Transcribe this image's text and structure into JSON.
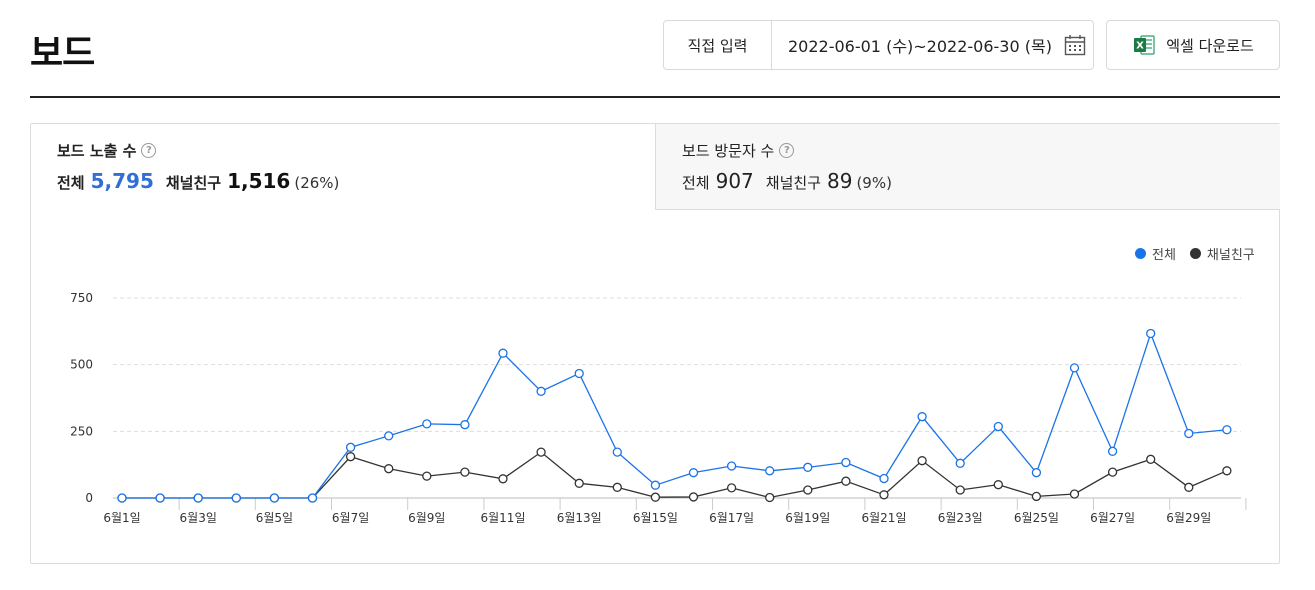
{
  "header": {
    "title": "보드",
    "date_mode": "직접 입력",
    "date_range": "2022-06-01 (수)~2022-06-30 (목)",
    "excel_label": "엑셀 다운로드"
  },
  "stats": {
    "exposure": {
      "title": "보드 노출 수",
      "total_label": "전체",
      "total_value": "5,795",
      "friend_label": "채널친구",
      "friend_value": "1,516",
      "friend_pct": "(26%)"
    },
    "visitors": {
      "title": "보드 방문자 수",
      "total_label": "전체",
      "total_value": "907",
      "friend_label": "채널친구",
      "friend_value": "89",
      "friend_pct": "(9%)"
    }
  },
  "colors": {
    "total": "#1a73e8",
    "friend": "#333333",
    "accent_value": "#2f6fd6"
  },
  "chart_data": {
    "type": "line",
    "legend": [
      "전체",
      "채널친구"
    ],
    "legend_position": "top-right",
    "grid": true,
    "ylim": [
      0,
      750
    ],
    "yticks": [
      0,
      250,
      500,
      750
    ],
    "x": [
      "6월1일",
      "6월2일",
      "6월3일",
      "6월4일",
      "6월5일",
      "6월6일",
      "6월7일",
      "6월8일",
      "6월9일",
      "6월10일",
      "6월11일",
      "6월12일",
      "6월13일",
      "6월14일",
      "6월15일",
      "6월16일",
      "6월17일",
      "6월18일",
      "6월19일",
      "6월20일",
      "6월21일",
      "6월22일",
      "6월23일",
      "6월24일",
      "6월25일",
      "6월26일",
      "6월27일",
      "6월28일",
      "6월29일",
      "6월30일"
    ],
    "xtick_labels": [
      "6월1일",
      "6월3일",
      "6월5일",
      "6월7일",
      "6월9일",
      "6월11일",
      "6월13일",
      "6월15일",
      "6월17일",
      "6월19일",
      "6월21일",
      "6월23일",
      "6월25일",
      "6월27일",
      "6월29일"
    ],
    "series": [
      {
        "name": "전체",
        "values": [
          0,
          0,
          0,
          0,
          0,
          0,
          190,
          233,
          278,
          275,
          543,
          400,
          467,
          172,
          48,
          95,
          120,
          102,
          115,
          133,
          73,
          305,
          130,
          268,
          95,
          488,
          175,
          617,
          242,
          256
        ]
      },
      {
        "name": "채널친구",
        "values": [
          0,
          0,
          0,
          0,
          0,
          0,
          155,
          110,
          82,
          97,
          72,
          172,
          55,
          40,
          3,
          4,
          38,
          2,
          30,
          63,
          12,
          140,
          30,
          50,
          6,
          15,
          97,
          145,
          40,
          102
        ]
      }
    ]
  }
}
